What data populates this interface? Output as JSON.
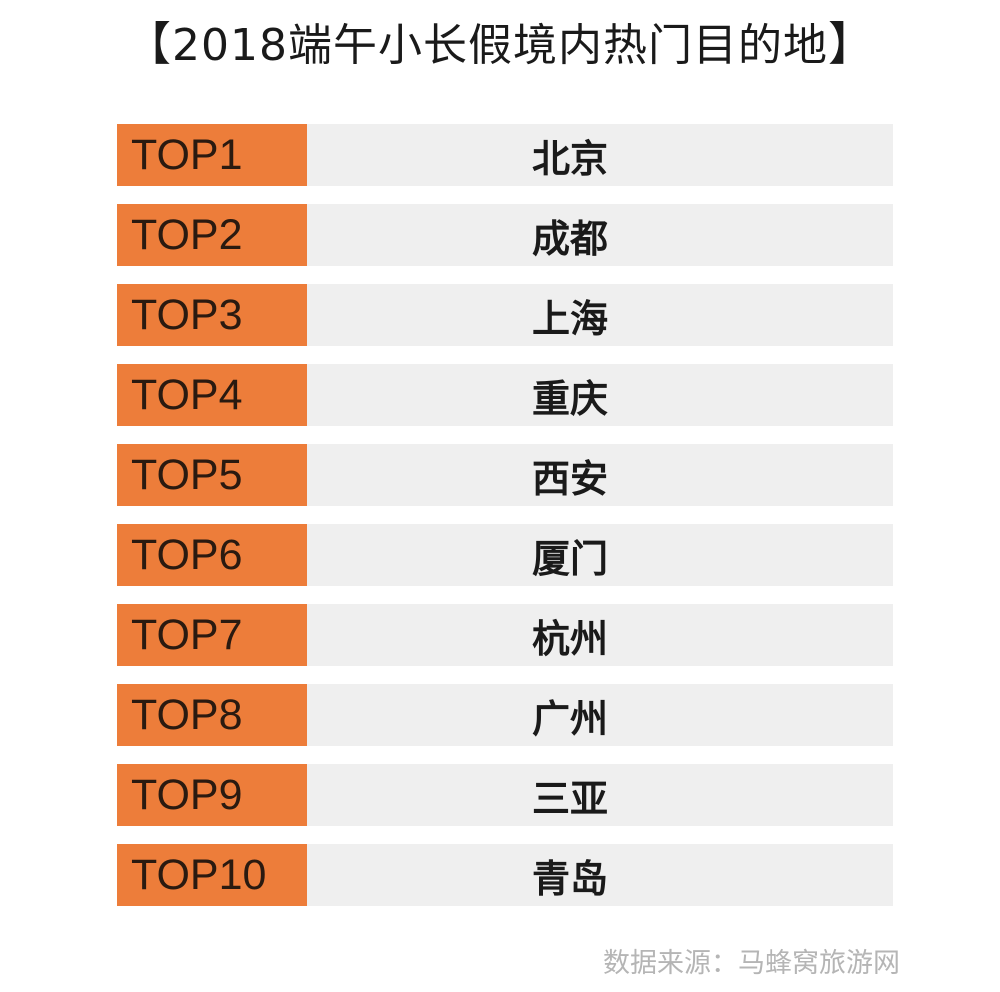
{
  "title": {
    "open_bracket": "【",
    "text": "2018端午小长假境内热门目的地",
    "close_bracket": "】"
  },
  "ranking": [
    {
      "rank": "TOP1",
      "city": "北京"
    },
    {
      "rank": "TOP2",
      "city": "成都"
    },
    {
      "rank": "TOP3",
      "city": "上海"
    },
    {
      "rank": "TOP4",
      "city": "重庆"
    },
    {
      "rank": "TOP5",
      "city": "西安"
    },
    {
      "rank": "TOP6",
      "city": "厦门"
    },
    {
      "rank": "TOP7",
      "city": "杭州"
    },
    {
      "rank": "TOP8",
      "city": "广州"
    },
    {
      "rank": "TOP9",
      "city": "三亚"
    },
    {
      "rank": "TOP10",
      "city": "青岛"
    }
  ],
  "source": "数据来源：马蜂窝旅游网",
  "colors": {
    "rank_bg": "#ed7d3a",
    "row_bg": "#efefef",
    "source_text": "#b5b5b5"
  }
}
